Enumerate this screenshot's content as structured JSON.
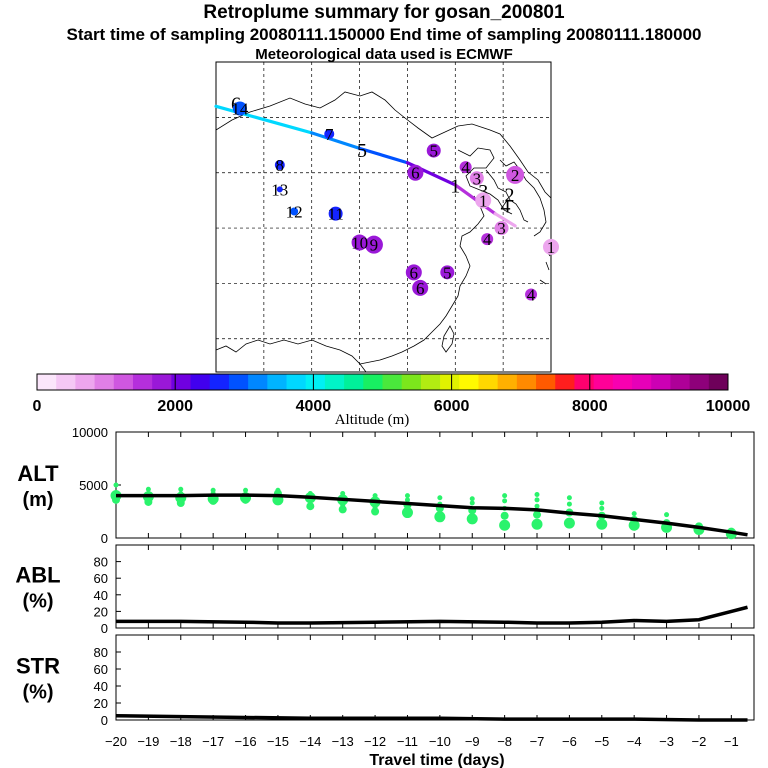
{
  "header": {
    "title": "Retroplume summary for gosan_200801",
    "sampling_line": "Start time of sampling 20080111.150000     End time of sampling 20080111.180000",
    "met_line": "Meteorological data used is ECMWF"
  },
  "map": {
    "trajectory_labels": [
      "1",
      "2",
      "3",
      "4",
      "5",
      "6"
    ],
    "clusters": [
      {
        "label": "1",
        "lon": 131.0,
        "lat": 31.3
      },
      {
        "label": "1",
        "lon": 122.5,
        "lat": 35.5
      },
      {
        "label": "2",
        "lon": 126.5,
        "lat": 37.8
      },
      {
        "label": "3",
        "lon": 121.7,
        "lat": 37.5
      },
      {
        "label": "3",
        "lon": 124.8,
        "lat": 33.0
      },
      {
        "label": "4",
        "lon": 120.3,
        "lat": 38.5
      },
      {
        "label": "4",
        "lon": 123.0,
        "lat": 32.0
      },
      {
        "label": "4",
        "lon": 128.5,
        "lat": 27.0
      },
      {
        "label": "5",
        "lon": 116.3,
        "lat": 40.0
      },
      {
        "label": "5",
        "lon": 118.0,
        "lat": 29.0
      },
      {
        "label": "6",
        "lon": 114.0,
        "lat": 38.0
      },
      {
        "label": "6",
        "lon": 113.8,
        "lat": 29.0
      },
      {
        "label": "6",
        "lon": 114.6,
        "lat": 27.6
      },
      {
        "label": "7",
        "lon": 103.2,
        "lat": 41.5
      },
      {
        "label": "8",
        "lon": 97.0,
        "lat": 38.7
      },
      {
        "label": "9",
        "lon": 108.8,
        "lat": 31.5
      },
      {
        "label": "10",
        "lon": 107.0,
        "lat": 31.7
      },
      {
        "label": "11",
        "lon": 104.0,
        "lat": 34.3
      },
      {
        "label": "12",
        "lon": 98.8,
        "lat": 34.5
      },
      {
        "label": "13",
        "lon": 97.0,
        "lat": 36.5
      },
      {
        "label": "14",
        "lon": 92.0,
        "lat": 43.8
      }
    ]
  },
  "colorbar": {
    "ticks": [
      "0",
      "2000",
      "4000",
      "6000",
      "8000",
      "10000"
    ],
    "label": "Altitude (m)",
    "colors": [
      "#fbe6fb",
      "#f5c8f5",
      "#eda6ee",
      "#e07fe6",
      "#cf57e0",
      "#b52fdc",
      "#9a18d8",
      "#7000e0",
      "#4100ee",
      "#1424ff",
      "#0052ff",
      "#0087ff",
      "#00b4ff",
      "#00d8ff",
      "#00f0f4",
      "#00f4c8",
      "#00f09a",
      "#18ef62",
      "#4ae83c",
      "#7ce61c",
      "#b2ec12",
      "#e0f200",
      "#fffa00",
      "#ffd800",
      "#ffb000",
      "#ff8a00",
      "#ff5a00",
      "#ff1e1e",
      "#ff006e",
      "#ff0098",
      "#f800b0",
      "#e600b8",
      "#cc00b4",
      "#ae0098",
      "#8e007a",
      "#6e005a"
    ]
  },
  "panels": [
    {
      "label": "ALT",
      "unit": "(m)",
      "yticks": [
        "0",
        "5000",
        "10000"
      ]
    },
    {
      "label": "ABL",
      "unit": "(%)",
      "yticks": [
        "0",
        "20",
        "40",
        "60",
        "80"
      ]
    },
    {
      "label": "STR",
      "unit": "(%)",
      "yticks": [
        "0",
        "20",
        "40",
        "60",
        "80"
      ]
    }
  ],
  "xaxis": {
    "label": "Travel time (days)",
    "ticks": [
      "−20",
      "−19",
      "−18",
      "−17",
      "−16",
      "−15",
      "−14",
      "−13",
      "−12",
      "−11",
      "−10",
      "−9",
      "−8",
      "−7",
      "−6",
      "−5",
      "−4",
      "−3",
      "−2",
      "−1"
    ]
  },
  "chart_data": {
    "type": "line",
    "title": "Retroplume summary for gosan_200801",
    "xlabel": "Travel time (days)",
    "xlim": [
      -20,
      -0.3
    ],
    "alt": {
      "ylabel": "ALT (m)",
      "ylim": [
        0,
        10000
      ],
      "x": [
        -20,
        -19,
        -18,
        -17,
        -16,
        -15,
        -14,
        -13,
        -12,
        -11,
        -10,
        -9,
        -8,
        -7,
        -6,
        -5,
        -4,
        -3,
        -2,
        -1,
        -0.5
      ],
      "mean": [
        4000,
        4000,
        4000,
        4050,
        4050,
        4000,
        3850,
        3650,
        3450,
        3250,
        3050,
        2850,
        2800,
        2650,
        2350,
        2100,
        1750,
        1400,
        1000,
        550,
        300
      ],
      "points": [
        {
          "x": -20,
          "y": [
            4000,
            3600,
            5000,
            4300
          ]
        },
        {
          "x": -19,
          "y": [
            3900,
            3400,
            4600,
            4200
          ]
        },
        {
          "x": -18,
          "y": [
            3800,
            3300,
            4600,
            4200
          ]
        },
        {
          "x": -17,
          "y": [
            3700,
            3500,
            4500,
            4200
          ]
        },
        {
          "x": -16,
          "y": [
            3800,
            3600,
            4500
          ]
        },
        {
          "x": -15,
          "y": [
            3600,
            4200,
            4500
          ]
        },
        {
          "x": -14,
          "y": [
            3800,
            3000,
            4200
          ]
        },
        {
          "x": -13,
          "y": [
            3600,
            2700,
            3100,
            4200
          ]
        },
        {
          "x": -12,
          "y": [
            3400,
            2500,
            2900,
            4000
          ]
        },
        {
          "x": -11,
          "y": [
            2400,
            3100,
            3600,
            4000
          ]
        },
        {
          "x": -10,
          "y": [
            2000,
            2800,
            3200,
            3800
          ]
        },
        {
          "x": -9,
          "y": [
            1800,
            2600,
            3300,
            3700
          ]
        },
        {
          "x": -8,
          "y": [
            1200,
            2100,
            2800,
            3500,
            4000
          ]
        },
        {
          "x": -7,
          "y": [
            1300,
            2200,
            3000,
            3600,
            4100
          ]
        },
        {
          "x": -6,
          "y": [
            1400,
            2400,
            3200,
            3800
          ]
        },
        {
          "x": -5,
          "y": [
            1300,
            2100,
            2800,
            3300
          ]
        },
        {
          "x": -4,
          "y": [
            1200,
            1700,
            2300
          ]
        },
        {
          "x": -3,
          "y": [
            1000,
            1400,
            2200
          ]
        },
        {
          "x": -2,
          "y": [
            800,
            1100
          ]
        },
        {
          "x": -1,
          "y": [
            400,
            600
          ]
        }
      ]
    },
    "abl": {
      "ylabel": "ABL (%)",
      "ylim": [
        0,
        100
      ],
      "x": [
        -20,
        -18,
        -16,
        -15,
        -14,
        -12,
        -10,
        -8,
        -7,
        -6,
        -5,
        -4,
        -3,
        -2,
        -1,
        -0.5
      ],
      "values": [
        8,
        8,
        7,
        6,
        6,
        7,
        8,
        7,
        6,
        6,
        7,
        9,
        8,
        10,
        20,
        25
      ]
    },
    "str": {
      "ylabel": "STR (%)",
      "ylim": [
        0,
        100
      ],
      "x": [
        -20,
        -18,
        -16,
        -14,
        -12,
        -10,
        -8,
        -6,
        -4,
        -2,
        -0.5
      ],
      "values": [
        5,
        4,
        3,
        2,
        2,
        2,
        1,
        1,
        1,
        0,
        0
      ]
    }
  }
}
